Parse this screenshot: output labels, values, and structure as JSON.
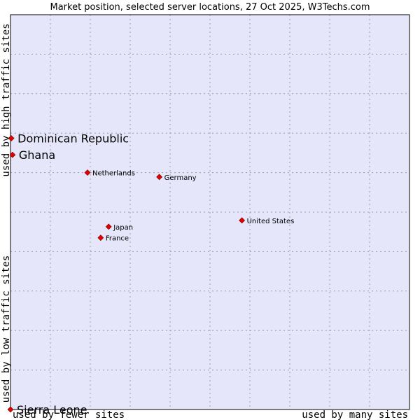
{
  "chart_data": {
    "type": "scatter",
    "title": "Market position, selected server locations, 27 Oct 2025, W3Techs.com",
    "xlabel_low": "used by fewer sites",
    "xlabel_high": "used by many sites",
    "ylabel_low": "used by low traffic sites",
    "ylabel_high": "used by high traffic sites",
    "xlim": [
      0,
      100
    ],
    "ylim": [
      0,
      100
    ],
    "grid": true,
    "background_color": "#e6e6fa",
    "marker_color": "#e00000",
    "points": [
      {
        "name": "Dominican Republic",
        "x": 0.2,
        "y": 68.7,
        "emphasis": true
      },
      {
        "name": "Ghana",
        "x": 0.5,
        "y": 64.5,
        "emphasis": true
      },
      {
        "name": "Netherlands",
        "x": 19.3,
        "y": 60.0,
        "emphasis": false
      },
      {
        "name": "Germany",
        "x": 37.3,
        "y": 58.9,
        "emphasis": false
      },
      {
        "name": "United States",
        "x": 58.0,
        "y": 47.9,
        "emphasis": false
      },
      {
        "name": "Japan",
        "x": 24.6,
        "y": 46.3,
        "emphasis": false
      },
      {
        "name": "France",
        "x": 22.6,
        "y": 43.5,
        "emphasis": false
      },
      {
        "name": "Sierra Leone",
        "x": 0.0,
        "y": 0.0,
        "emphasis": true
      }
    ]
  }
}
